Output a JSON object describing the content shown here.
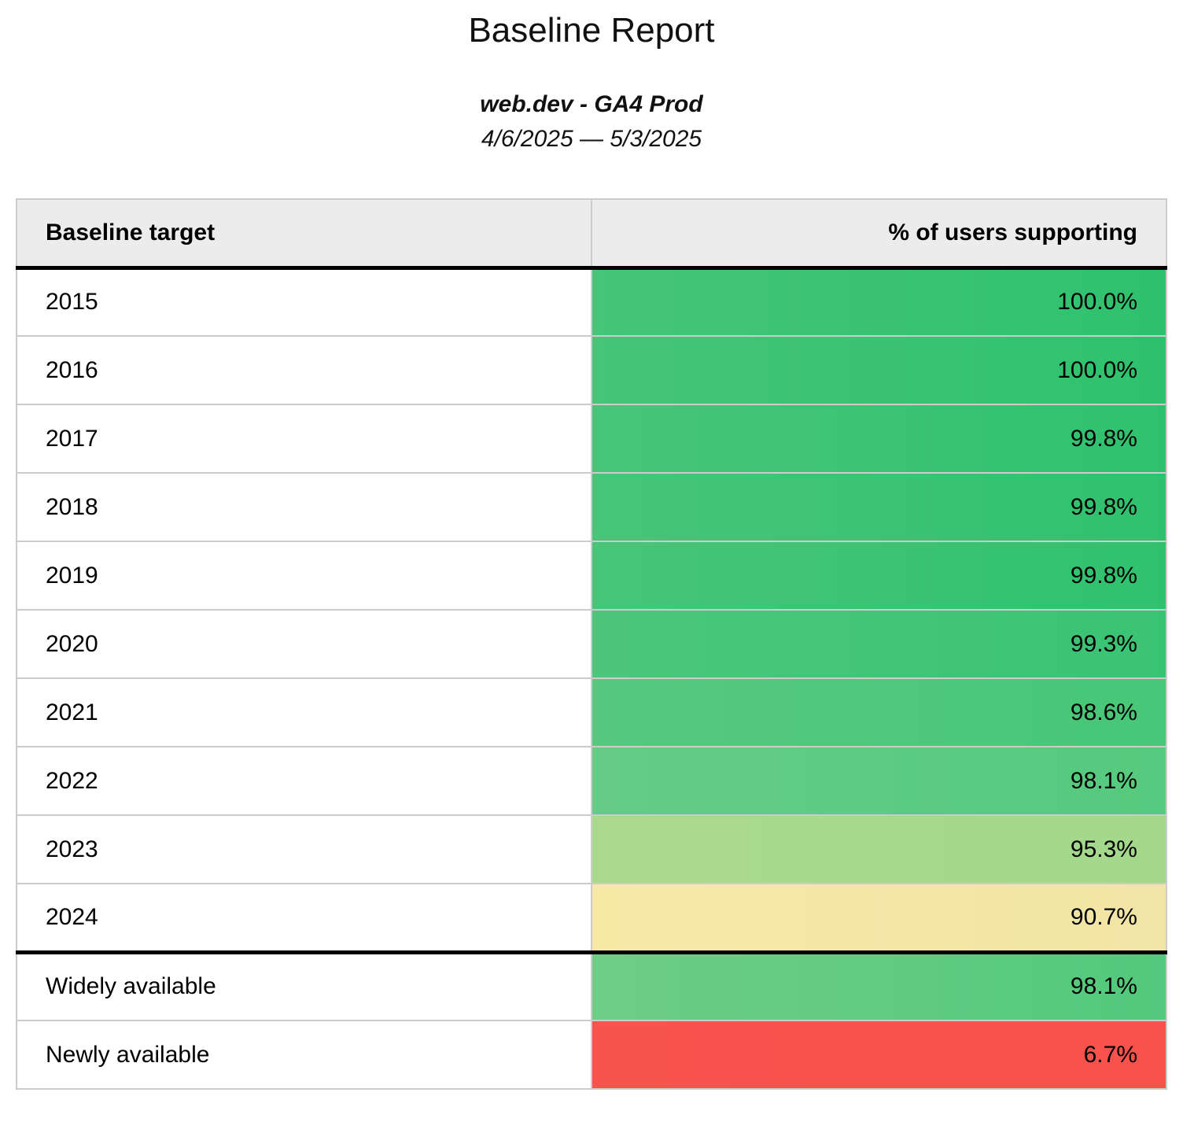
{
  "report": {
    "title": "Baseline Report",
    "subtitle": "web.dev - GA4 Prod",
    "date_range": "4/6/2025 — 5/3/2025"
  },
  "table": {
    "columns": [
      "Baseline target",
      "% of users supporting"
    ],
    "rows": [
      {
        "target": "2015",
        "value": "100.0%",
        "color_left": "#46c478",
        "color_right": "#2ec26e",
        "separator_after": false
      },
      {
        "target": "2016",
        "value": "100.0%",
        "color_left": "#46c478",
        "color_right": "#2ec26e",
        "separator_after": false
      },
      {
        "target": "2017",
        "value": "99.8%",
        "color_left": "#47c578",
        "color_right": "#2fc26e",
        "separator_after": false
      },
      {
        "target": "2018",
        "value": "99.8%",
        "color_left": "#47c578",
        "color_right": "#2fc26e",
        "separator_after": false
      },
      {
        "target": "2019",
        "value": "99.8%",
        "color_left": "#47c578",
        "color_right": "#2fc26e",
        "separator_after": false
      },
      {
        "target": "2020",
        "value": "99.3%",
        "color_left": "#4cc67a",
        "color_right": "#39c473",
        "separator_after": false
      },
      {
        "target": "2021",
        "value": "98.6%",
        "color_left": "#56c97f",
        "color_right": "#47c778",
        "separator_after": false
      },
      {
        "target": "2022",
        "value": "98.1%",
        "color_left": "#64cc86",
        "color_right": "#56ca7e",
        "separator_after": false
      },
      {
        "target": "2023",
        "value": "95.3%",
        "color_left": "#a9d98f",
        "color_right": "#a3d88c",
        "separator_after": false
      },
      {
        "target": "2024",
        "value": "90.7%",
        "color_left": "#f7e8a6",
        "color_right": "#f1e5a5",
        "separator_after": true
      },
      {
        "target": "Widely available",
        "value": "98.1%",
        "color_left": "#6fcd86",
        "color_right": "#52c97c",
        "separator_after": false
      },
      {
        "target": "Newly available",
        "value": "6.7%",
        "color_left": "#f9534e",
        "color_right": "#f9514c",
        "separator_after": false
      }
    ]
  },
  "chart_data": {
    "type": "table",
    "title": "Baseline Report",
    "subtitle": "web.dev - GA4 Prod",
    "date_range": "4/6/2025 — 5/3/2025",
    "columns": [
      "Baseline target",
      "% of users supporting"
    ],
    "categories": [
      "2015",
      "2016",
      "2017",
      "2018",
      "2019",
      "2020",
      "2021",
      "2022",
      "2023",
      "2024",
      "Widely available",
      "Newly available"
    ],
    "values": [
      100.0,
      100.0,
      99.8,
      99.8,
      99.8,
      99.3,
      98.6,
      98.1,
      95.3,
      90.7,
      98.1,
      6.7
    ],
    "value_unit": "%",
    "layout_hints": {
      "value_column_style": "heatmap gradient per row, left-to-right",
      "color_scale": {
        "high": "#2ec26e",
        "mid": "#f1e5a5",
        "low": "#f9514c"
      },
      "thick_separators_after": [
        "header",
        "2024"
      ]
    }
  },
  "colors": {
    "header_bg": "#ececec",
    "grid_border": "#cccccc",
    "strong_separator": "#000000",
    "text": "#111111",
    "page_bg": "#ffffff"
  }
}
